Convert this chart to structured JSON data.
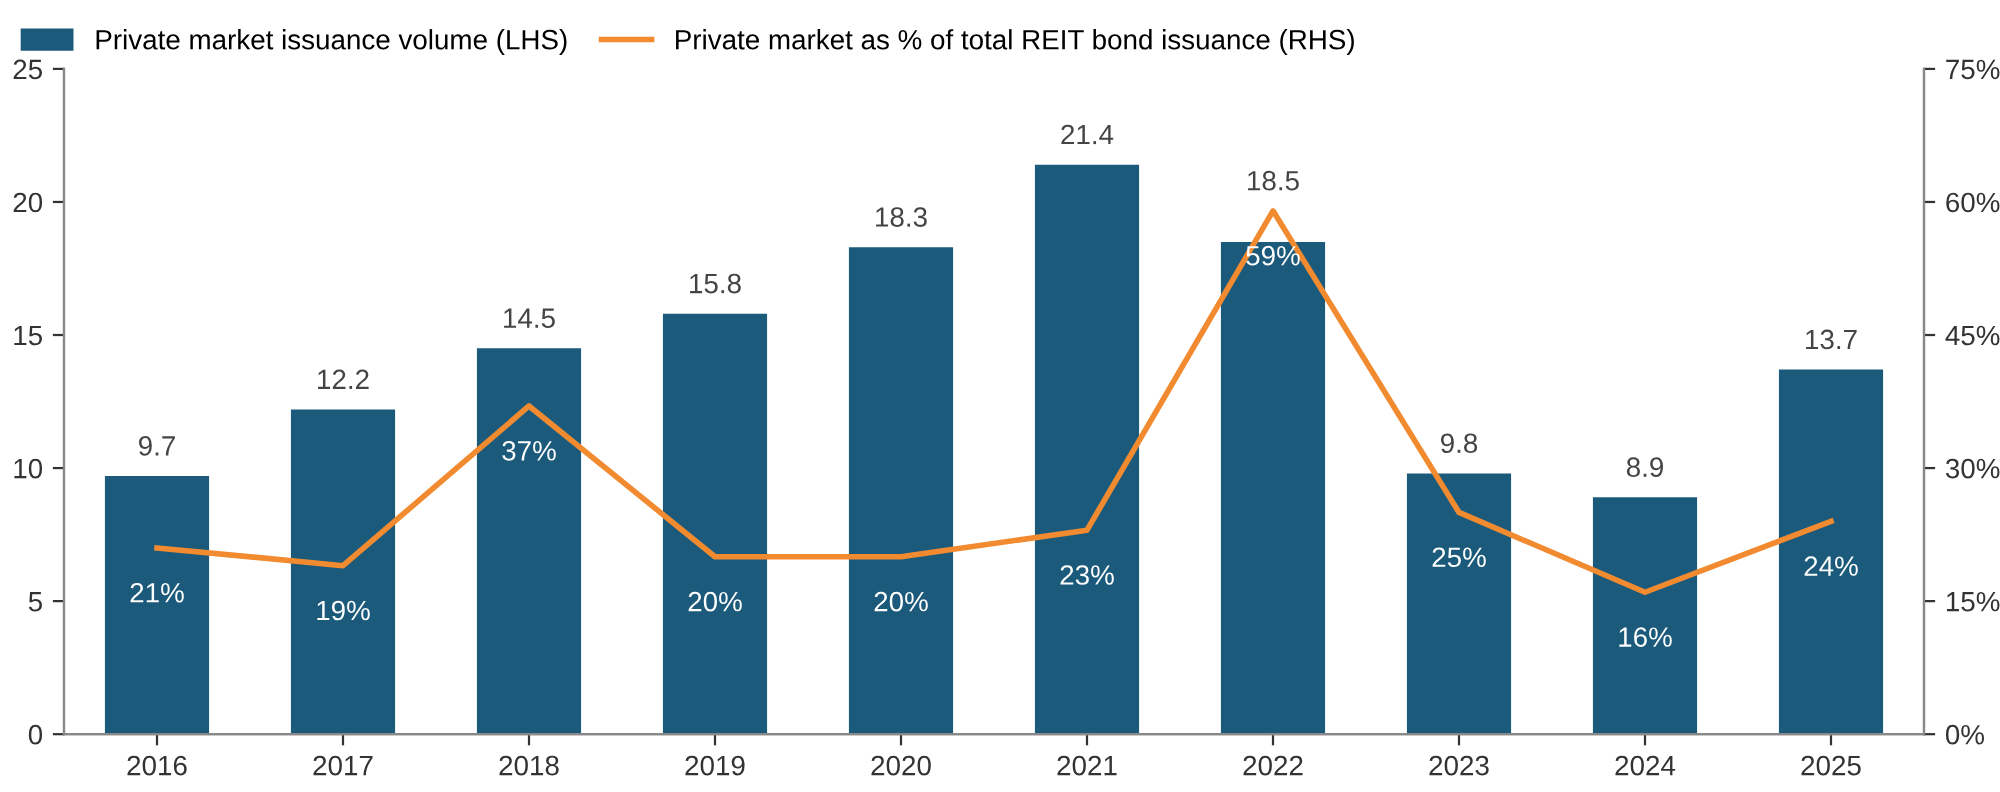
{
  "chart_data": {
    "type": "bar",
    "categories": [
      "2016",
      "2017",
      "2018",
      "2019",
      "2020",
      "2021",
      "2022",
      "2023",
      "2024",
      "2025"
    ],
    "series": [
      {
        "name": "Private market issuance volume (LHS)",
        "color": "#1b5a7b",
        "values": [
          9.7,
          12.2,
          14.5,
          15.8,
          18.3,
          21.4,
          18.5,
          9.8,
          8.9,
          13.7
        ],
        "value_labels": [
          "9.7",
          "12.2",
          "14.5",
          "15.8",
          "18.3",
          "21.4",
          "18.5",
          "9.8",
          "8.9",
          "13.7"
        ]
      },
      {
        "name": "Private market as % of total REIT bond issuance (RHS)",
        "type": "line",
        "axis": "y2",
        "color": "#f28a30",
        "values": [
          21,
          19,
          37,
          20,
          20,
          23,
          59,
          25,
          16,
          24
        ],
        "value_labels": [
          "21%",
          "19%",
          "37%",
          "20%",
          "20%",
          "23%",
          "59%",
          "25%",
          "16%",
          "24%"
        ]
      }
    ],
    "ylim": [
      0,
      25
    ],
    "yticks": [
      0,
      5,
      10,
      15,
      20,
      25
    ],
    "y2lim": [
      0,
      75
    ],
    "y2ticks": [
      {
        "value": 0,
        "label": "0%"
      },
      {
        "value": 15,
        "label": "15%"
      },
      {
        "value": 30,
        "label": "30%"
      },
      {
        "value": 45,
        "label": "45%"
      },
      {
        "value": 60,
        "label": "60%"
      },
      {
        "value": 75,
        "label": "75%"
      }
    ],
    "legend": "top left",
    "grid": false,
    "marker": "none",
    "line_style": "solid"
  }
}
